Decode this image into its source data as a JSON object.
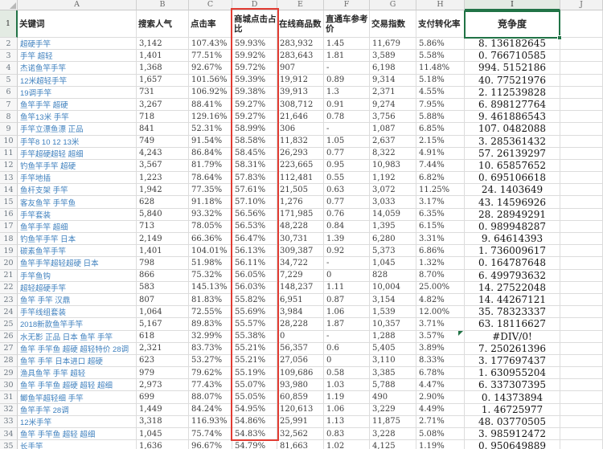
{
  "sheet": {
    "column_letters": [
      "A",
      "B",
      "C",
      "D",
      "E",
      "F",
      "G",
      "H",
      "I",
      "J"
    ],
    "selection": {
      "cell": "I1",
      "column": "I",
      "row": "1"
    },
    "colors": {
      "selection_green": "#217346",
      "annotation_red": "#e23c33",
      "keyword_blue": "#3f80be"
    },
    "header": {
      "n": "1",
      "cells": [
        "关键词",
        "搜索人气",
        "点击率",
        "商城点击占比",
        "在线商品数",
        "直通车参考价",
        "交易指数",
        "支付转化率",
        "竞争度",
        ""
      ]
    },
    "error_value": "#DIV/0!",
    "rows": [
      {
        "n": "2",
        "cells": [
          "超硬手竿",
          "3,142",
          "107.43%",
          "59.93%",
          "283,932",
          "1.45",
          "11,679",
          "5.86%",
          "8.136182645"
        ]
      },
      {
        "n": "3",
        "cells": [
          "手竿 超轻",
          "1,401",
          "77.51%",
          "59.92%",
          "283,643",
          "1.81",
          "3,589",
          "5.58%",
          "0.766710585"
        ]
      },
      {
        "n": "4",
        "cells": [
          "杰诺鱼竿手竿",
          "1,368",
          "92.67%",
          "59.72%",
          "907",
          "-",
          "6,198",
          "11.48%",
          "994.5152186"
        ]
      },
      {
        "n": "5",
        "cells": [
          "12米超轻手竿",
          "1,657",
          "101.56%",
          "59.39%",
          "19,912",
          "0.89",
          "9,314",
          "5.18%",
          "40.77521976"
        ]
      },
      {
        "n": "6",
        "cells": [
          "19调手竿",
          "731",
          "106.92%",
          "59.38%",
          "39,913",
          "1.3",
          "2,371",
          "4.55%",
          "2.112539828"
        ]
      },
      {
        "n": "7",
        "cells": [
          "鱼竿手竿 超硬",
          "3,267",
          "88.41%",
          "59.27%",
          "308,712",
          "0.91",
          "9,274",
          "7.95%",
          "6.898127764"
        ]
      },
      {
        "n": "8",
        "cells": [
          "鱼竿13米 手竿",
          "718",
          "129.16%",
          "59.27%",
          "21,646",
          "0.78",
          "3,756",
          "5.88%",
          "9.461886543"
        ]
      },
      {
        "n": "9",
        "cells": [
          "手竿立漂鱼漂 正品",
          "841",
          "52.31%",
          "58.99%",
          "306",
          "-",
          "1,087",
          "6.85%",
          "107.0482088"
        ]
      },
      {
        "n": "10",
        "cells": [
          "手竿8 10 12 13米",
          "749",
          "91.54%",
          "58.58%",
          "11,832",
          "1.05",
          "2,637",
          "2.15%",
          "3.285361432"
        ]
      },
      {
        "n": "11",
        "cells": [
          "手竿超硬超轻 超细",
          "4,243",
          "86.84%",
          "58.45%",
          "26,293",
          "0.77",
          "8,322",
          "4.91%",
          "57.26139297"
        ]
      },
      {
        "n": "12",
        "cells": [
          "钓鱼竿手竿 超硬",
          "3,567",
          "81.79%",
          "58.31%",
          "223,665",
          "0.95",
          "10,983",
          "7.44%",
          "10.65857652"
        ]
      },
      {
        "n": "13",
        "cells": [
          "手竿地插",
          "1,223",
          "78.64%",
          "57.83%",
          "112,481",
          "0.55",
          "1,192",
          "6.82%",
          "0.695106618"
        ]
      },
      {
        "n": "14",
        "cells": [
          "鱼杆支架 手竿",
          "1,942",
          "77.35%",
          "57.61%",
          "21,505",
          "0.63",
          "3,072",
          "11.25%",
          "24.1403649"
        ]
      },
      {
        "n": "15",
        "cells": [
          "客友鱼竿 手竿鱼",
          "628",
          "91.18%",
          "57.10%",
          "1,276",
          "0.77",
          "3,033",
          "3.17%",
          "43.14596926"
        ]
      },
      {
        "n": "16",
        "cells": [
          "手竿套装",
          "5,840",
          "93.32%",
          "56.56%",
          "171,985",
          "0.76",
          "14,059",
          "6.35%",
          "28.28949291"
        ]
      },
      {
        "n": "17",
        "cells": [
          "鱼竿手竿 超细",
          "713",
          "78.05%",
          "56.53%",
          "48,228",
          "0.84",
          "1,395",
          "6.15%",
          "0.989948287"
        ]
      },
      {
        "n": "18",
        "cells": [
          "钓鱼竿手竿 日本",
          "2,149",
          "66.36%",
          "56.47%",
          "30,731",
          "1.39",
          "6,280",
          "3.31%",
          "9.64614393"
        ]
      },
      {
        "n": "19",
        "cells": [
          "碳素鱼竿手竿",
          "1,401",
          "104.01%",
          "56.13%",
          "309,387",
          "0.92",
          "5,373",
          "6.86%",
          "1.736009617"
        ]
      },
      {
        "n": "20",
        "cells": [
          "鱼竿手竿超轻超硬 日本",
          "798",
          "51.98%",
          "56.11%",
          "34,722",
          "-",
          "1,045",
          "1.32%",
          "0.164787648"
        ]
      },
      {
        "n": "21",
        "cells": [
          "手竿鱼钩",
          "866",
          "75.32%",
          "56.05%",
          "7,229",
          "0",
          "828",
          "8.70%",
          "6.499793632"
        ]
      },
      {
        "n": "22",
        "cells": [
          "超轻超硬手竿",
          "583",
          "145.13%",
          "56.03%",
          "148,237",
          "1.11",
          "10,004",
          "25.00%",
          "14.27522048"
        ]
      },
      {
        "n": "23",
        "cells": [
          "鱼竿 手竿 汉鼎",
          "807",
          "81.83%",
          "55.82%",
          "6,951",
          "0.87",
          "3,154",
          "4.82%",
          "14.44267121"
        ]
      },
      {
        "n": "24",
        "cells": [
          "手竿线组套装",
          "1,064",
          "72.55%",
          "55.69%",
          "3,984",
          "1.06",
          "1,539",
          "12.00%",
          "35.78323337"
        ]
      },
      {
        "n": "25",
        "cells": [
          "2018新款鱼竿手竿",
          "5,167",
          "89.83%",
          "55.57%",
          "28,228",
          "1.87",
          "10,357",
          "3.71%",
          "63.18116627"
        ]
      },
      {
        "n": "26",
        "cells": [
          "水无影 正品 日本 鱼竿 手竿",
          "618",
          "32.99%",
          "55.38%",
          "0",
          "-",
          "1,288",
          "3.57%",
          "#DIV/0!"
        ]
      },
      {
        "n": "27",
        "cells": [
          "鱼竿 手竿鱼 超硬 超轻特价 28调",
          "2,321",
          "83.73%",
          "55.21%",
          "56,357",
          "0.6",
          "5,405",
          "3.89%",
          "7.250261396"
        ]
      },
      {
        "n": "28",
        "cells": [
          "鱼竿 手竿 日本进口 超硬",
          "623",
          "53.27%",
          "55.21%",
          "27,056",
          "0",
          "3,110",
          "8.33%",
          "3.177697437"
        ]
      },
      {
        "n": "29",
        "cells": [
          "渔具鱼竿 手竿 超轻",
          "979",
          "79.62%",
          "55.19%",
          "109,686",
          "0.58",
          "3,385",
          "6.78%",
          "1.630955204"
        ]
      },
      {
        "n": "30",
        "cells": [
          "鱼竿 手竿鱼 超硬 超轻 超细",
          "2,973",
          "77.43%",
          "55.07%",
          "93,980",
          "1.03",
          "5,788",
          "4.47%",
          "6.337307395"
        ]
      },
      {
        "n": "31",
        "cells": [
          "鲫鱼竿超轻细 手竿",
          "699",
          "88.07%",
          "55.05%",
          "60,859",
          "1.19",
          "490",
          "2.90%",
          "0.14373894"
        ]
      },
      {
        "n": "32",
        "cells": [
          "鱼竿手竿 28调",
          "1,449",
          "84.24%",
          "54.95%",
          "120,613",
          "1.06",
          "3,229",
          "4.49%",
          "1.46725977"
        ]
      },
      {
        "n": "33",
        "cells": [
          "12米手竿",
          "3,318",
          "116.93%",
          "54.86%",
          "25,991",
          "1.13",
          "11,875",
          "2.71%",
          "48.03770505"
        ]
      },
      {
        "n": "34",
        "cells": [
          "鱼竿 手竿鱼 超轻 超细",
          "1,045",
          "75.74%",
          "54.83%",
          "32,562",
          "0.83",
          "3,228",
          "5.08%",
          "3.985912472"
        ]
      },
      {
        "n": "35",
        "cells": [
          "长手竿",
          "1,636",
          "96.67%",
          "54.79%",
          "81,663",
          "1.02",
          "4,125",
          "1.19%",
          "0.950649889"
        ]
      }
    ]
  }
}
